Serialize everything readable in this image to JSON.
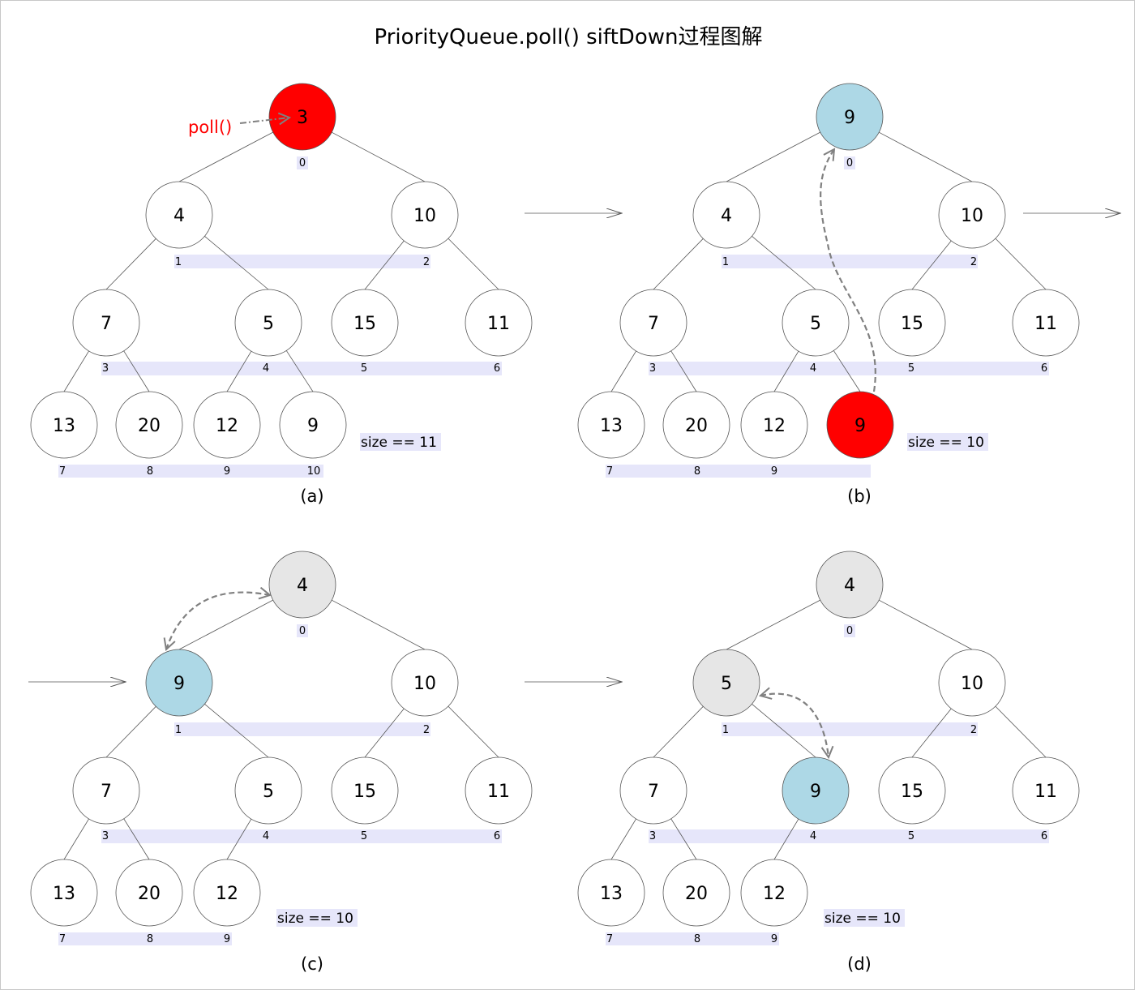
{
  "title": "PriorityQueue.poll() siftDown过程图解",
  "colors": {
    "removed": "#ff0000",
    "moving": "#add8e6",
    "settled": "#e6e6e6",
    "normal": "#ffffff",
    "index_bg": "#e6e6fa",
    "annotation": "#ff0000",
    "arrow": "#808080"
  },
  "annotation_label": "poll()",
  "panels": [
    {
      "caption": "(a)",
      "size_text": "size == 11",
      "nodes": [
        {
          "v": "3",
          "s": "removed"
        },
        {
          "v": "4"
        },
        {
          "v": "10"
        },
        {
          "v": "7"
        },
        {
          "v": "5"
        },
        {
          "v": "15"
        },
        {
          "v": "11"
        },
        {
          "v": "13"
        },
        {
          "v": "20"
        },
        {
          "v": "12"
        },
        {
          "v": "9"
        }
      ],
      "indices": [
        "0",
        "1",
        "2",
        "3",
        "4",
        "5",
        "6",
        "7",
        "8",
        "9",
        "10"
      ]
    },
    {
      "caption": "(b)",
      "size_text": "size == 10",
      "nodes": [
        {
          "v": "9",
          "s": "moving"
        },
        {
          "v": "4"
        },
        {
          "v": "10"
        },
        {
          "v": "7"
        },
        {
          "v": "5"
        },
        {
          "v": "15"
        },
        {
          "v": "11"
        },
        {
          "v": "13"
        },
        {
          "v": "20"
        },
        {
          "v": "12"
        },
        {
          "v": "9",
          "s": "removed"
        }
      ],
      "indices": [
        "0",
        "1",
        "2",
        "3",
        "4",
        "5",
        "6",
        "7",
        "8",
        "9"
      ]
    },
    {
      "caption": "(c)",
      "size_text": "size == 10",
      "nodes": [
        {
          "v": "4",
          "s": "settled"
        },
        {
          "v": "9",
          "s": "moving"
        },
        {
          "v": "10"
        },
        {
          "v": "7"
        },
        {
          "v": "5"
        },
        {
          "v": "15"
        },
        {
          "v": "11"
        },
        {
          "v": "13"
        },
        {
          "v": "20"
        },
        {
          "v": "12"
        }
      ],
      "indices": [
        "0",
        "1",
        "2",
        "3",
        "4",
        "5",
        "6",
        "7",
        "8",
        "9"
      ]
    },
    {
      "caption": "(d)",
      "size_text": "size == 10",
      "nodes": [
        {
          "v": "4",
          "s": "settled"
        },
        {
          "v": "5",
          "s": "settled"
        },
        {
          "v": "10"
        },
        {
          "v": "7"
        },
        {
          "v": "9",
          "s": "moving"
        },
        {
          "v": "15"
        },
        {
          "v": "11"
        },
        {
          "v": "13"
        },
        {
          "v": "20"
        },
        {
          "v": "12"
        }
      ],
      "indices": [
        "0",
        "1",
        "2",
        "3",
        "4",
        "5",
        "6",
        "7",
        "8",
        "9"
      ]
    }
  ]
}
